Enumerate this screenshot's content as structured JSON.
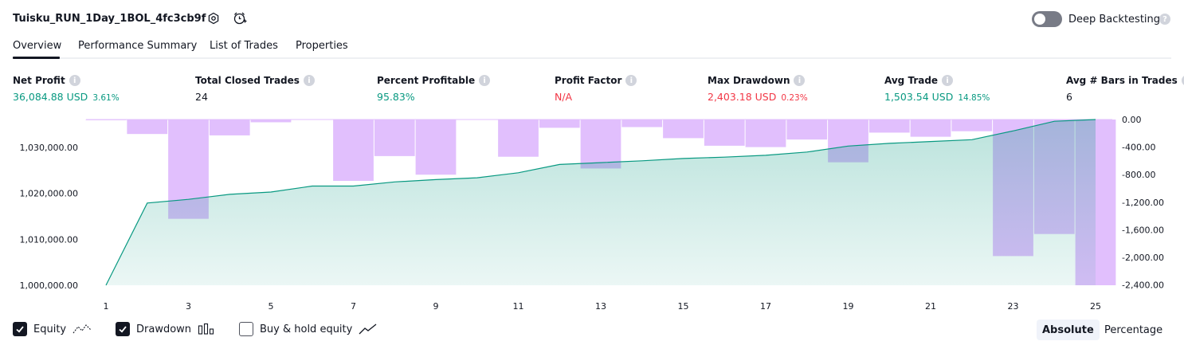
{
  "header": {
    "title": "Tuisku_RUN_1Day_1BOL_4fc3cb9f",
    "settings_icon": "gear-icon",
    "alert_icon": "alarm-clock-plus-icon",
    "deep_backtesting_label": "Deep Backtesting",
    "deep_backtesting_enabled": false,
    "help_glyph": "?"
  },
  "tabs": [
    {
      "label": "Overview",
      "active": true
    },
    {
      "label": "Performance Summary",
      "active": false
    },
    {
      "label": "List of Trades",
      "active": false
    },
    {
      "label": "Properties",
      "active": false
    }
  ],
  "metrics": [
    {
      "label": "Net Profit",
      "value": "36,084.88 USD",
      "pct": "3.61%",
      "color": "#089981"
    },
    {
      "label": "Total Closed Trades",
      "value": "24",
      "pct": "",
      "color": "#131722"
    },
    {
      "label": "Percent Profitable",
      "value": "95.83%",
      "pct": "",
      "color": "#089981"
    },
    {
      "label": "Profit Factor",
      "value": "N/A",
      "pct": "",
      "color": "#f23645"
    },
    {
      "label": "Max Drawdown",
      "value": "2,403.18 USD",
      "pct": "0.23%",
      "color": "#f23645"
    },
    {
      "label": "Avg Trade",
      "value": "1,503.54 USD",
      "pct": "14.85%",
      "color": "#089981"
    },
    {
      "label": "Avg # Bars in Trades",
      "value": "6",
      "pct": "",
      "color": "#131722"
    }
  ],
  "chart_data": {
    "type": "area",
    "x_ticks": [
      "1",
      "3",
      "5",
      "7",
      "9",
      "11",
      "13",
      "15",
      "17",
      "19",
      "21",
      "23",
      "25"
    ],
    "left_axis": {
      "ticks": [
        "1,000,000.00",
        "1,010,000.00",
        "1,020,000.00",
        "1,030,000.00"
      ],
      "range": [
        1000000,
        1036084.88
      ]
    },
    "right_axis": {
      "ticks": [
        "0.00",
        "-400.00",
        "-800.00",
        "-1,200.00",
        "-1,600.00",
        "-2,000.00",
        "-2,400.00"
      ],
      "range": [
        -2403.18,
        0
      ]
    },
    "series": [
      {
        "name": "Equity",
        "color": "#089981",
        "x": [
          1,
          2,
          3,
          4,
          5,
          6,
          7,
          8,
          9,
          10,
          11,
          12,
          13,
          14,
          15,
          16,
          17,
          18,
          19,
          20,
          21,
          22,
          23,
          24,
          25
        ],
        "values": [
          1000000,
          1017900,
          1018700,
          1019800,
          1020300,
          1021600,
          1021600,
          1022500,
          1023000,
          1023400,
          1024500,
          1026300,
          1026700,
          1027100,
          1027600,
          1027900,
          1028300,
          1029000,
          1030300,
          1030900,
          1031300,
          1031700,
          1033600,
          1035700,
          1036084.88
        ]
      },
      {
        "name": "Drawdown",
        "color": "#e1bffd",
        "x": [
          1,
          2,
          3,
          4,
          5,
          6,
          7,
          8,
          9,
          10,
          11,
          12,
          13,
          14,
          15,
          16,
          17,
          18,
          19,
          20,
          21,
          22,
          23,
          24,
          25
        ],
        "values": [
          -10,
          -210,
          -1440,
          -230,
          -40,
          0,
          -890,
          -530,
          -800,
          0,
          -540,
          -120,
          -710,
          -110,
          -270,
          -380,
          -400,
          -290,
          -620,
          -190,
          -250,
          -170,
          -1980,
          -1660,
          -2403.18
        ]
      }
    ]
  },
  "legend": [
    {
      "label": "Equity",
      "checked": true,
      "icon": "equity-line-icon"
    },
    {
      "label": "Drawdown",
      "checked": true,
      "icon": "drawdown-bars-icon"
    },
    {
      "label": "Buy & hold equity",
      "checked": false,
      "icon": "buy-hold-line-icon"
    }
  ],
  "modes": [
    {
      "label": "Absolute",
      "active": true
    },
    {
      "label": "Percentage",
      "active": false
    }
  ]
}
